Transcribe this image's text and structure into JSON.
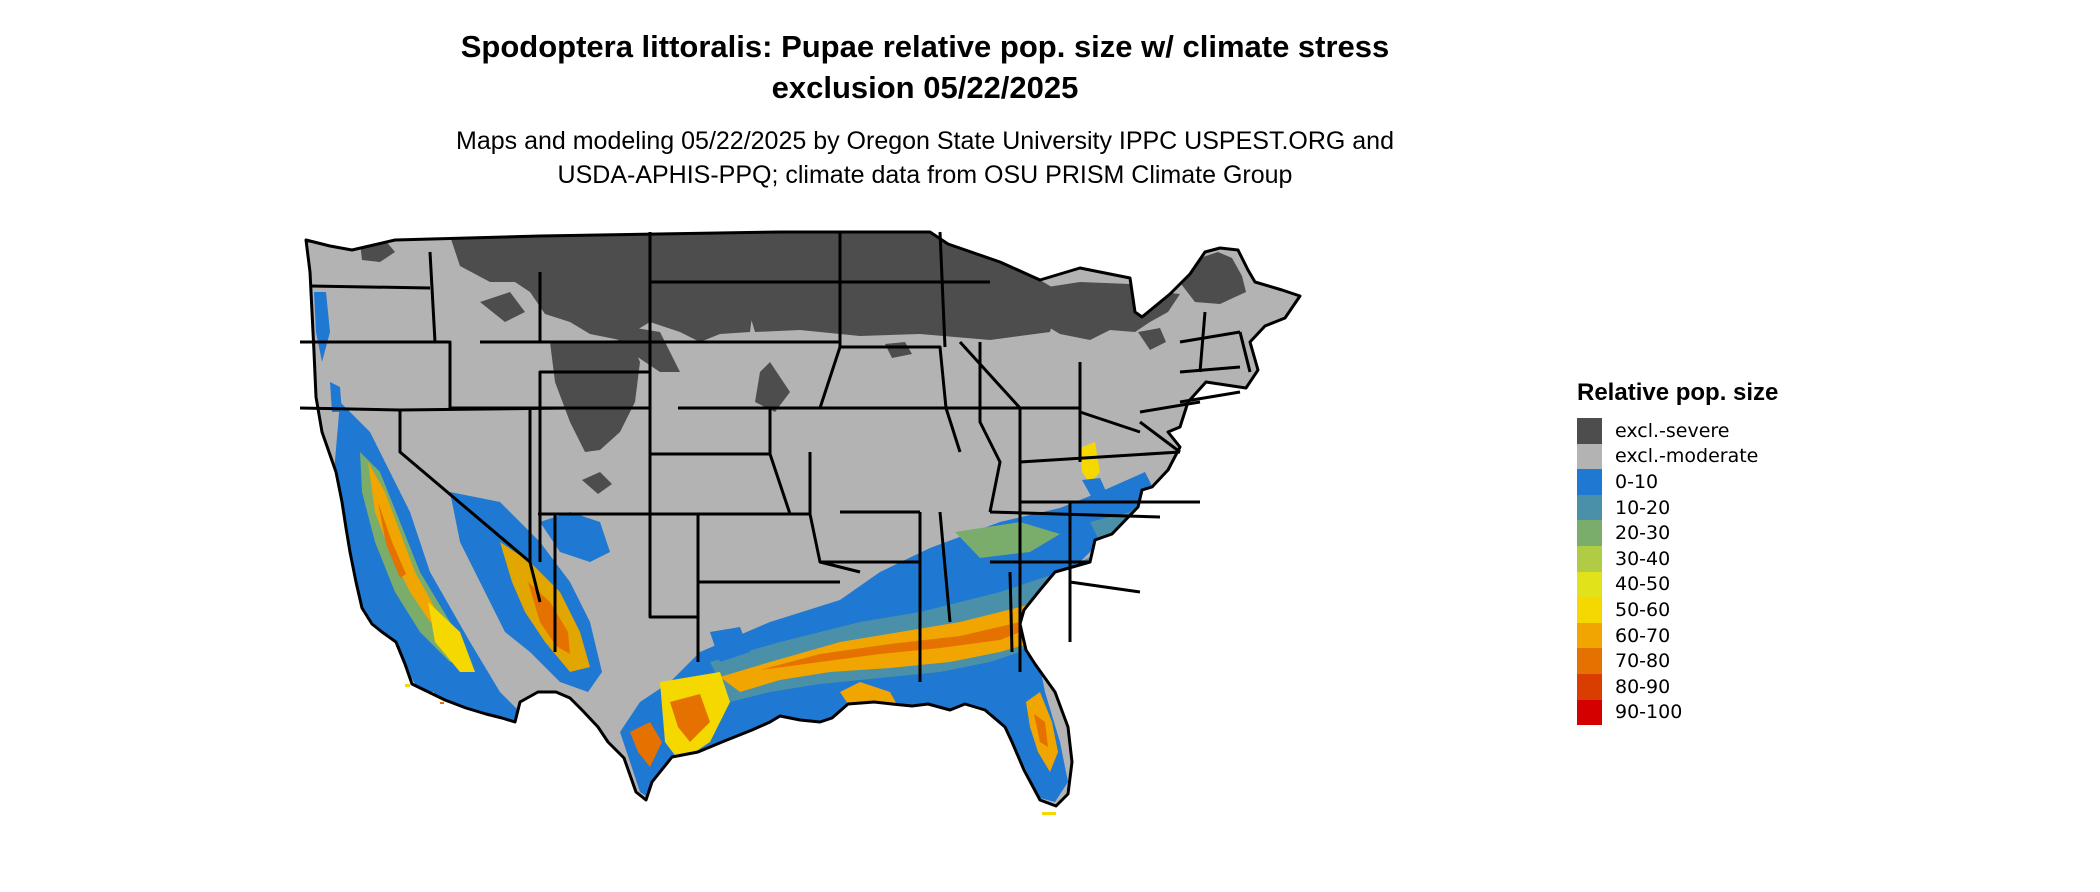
{
  "title_line1": "Spodoptera littoralis: Pupae relative pop. size w/ climate stress",
  "title_line2": "exclusion 05/22/2025",
  "subtitle_line1": "Maps and modeling 05/22/2025 by Oregon State University IPPC USPEST.ORG and",
  "subtitle_line2": "USDA-APHIS-PPQ; climate data from OSU PRISM Climate Group",
  "legend": {
    "title": "Relative pop. size",
    "items": [
      {
        "label": "excl.-severe",
        "color": "#4d4d4d"
      },
      {
        "label": "excl.-moderate",
        "color": "#b3b3b3"
      },
      {
        "label": "0-10",
        "color": "#1f78d1"
      },
      {
        "label": "10-20",
        "color": "#4a90a8"
      },
      {
        "label": "20-30",
        "color": "#7aac6c"
      },
      {
        "label": "30-40",
        "color": "#b0cc44"
      },
      {
        "label": "40-50",
        "color": "#e2e21a"
      },
      {
        "label": "50-60",
        "color": "#f5d800"
      },
      {
        "label": "60-70",
        "color": "#f0a500"
      },
      {
        "label": "70-80",
        "color": "#e57200"
      },
      {
        "label": "80-90",
        "color": "#d93d00"
      },
      {
        "label": "90-100",
        "color": "#d40000"
      }
    ]
  }
}
